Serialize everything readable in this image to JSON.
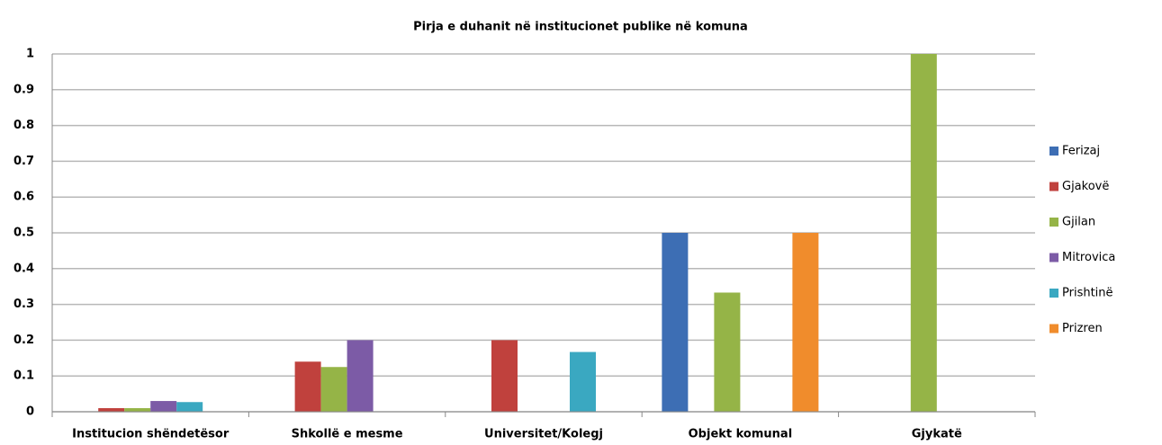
{
  "chart_data": {
    "type": "bar",
    "title": "Pirja e duhanit në institucionet publike në komuna",
    "categories": [
      "Institucion shëndetësor",
      "Shkollë e mesme",
      "Universitet/Kolegj",
      "Objekt komunal",
      "Gjykatë"
    ],
    "series": [
      {
        "name": "Ferizaj",
        "color": "#3d6eb4",
        "values": [
          0,
          0,
          0,
          0.5,
          0
        ]
      },
      {
        "name": "Gjakovë",
        "color": "#c0413d",
        "values": [
          0.01,
          0.14,
          0.2,
          0,
          0
        ]
      },
      {
        "name": "Gjilan",
        "color": "#95b447",
        "values": [
          0.01,
          0.125,
          0,
          0.333,
          1
        ]
      },
      {
        "name": "Mitrovica",
        "color": "#7c5ba6",
        "values": [
          0.03,
          0.2,
          0,
          0,
          0
        ]
      },
      {
        "name": "Prishtinë",
        "color": "#3aa8c1",
        "values": [
          0.027,
          0,
          0.167,
          0,
          0
        ]
      },
      {
        "name": "Prizren",
        "color": "#f08c2c",
        "values": [
          0,
          0,
          0,
          0.5,
          0
        ]
      }
    ],
    "ylim": [
      0,
      1
    ],
    "yticks": [
      0,
      0.1,
      0.2,
      0.3,
      0.4,
      0.5,
      0.6,
      0.7,
      0.8,
      0.9,
      1
    ],
    "grid": true,
    "legend": "right"
  }
}
